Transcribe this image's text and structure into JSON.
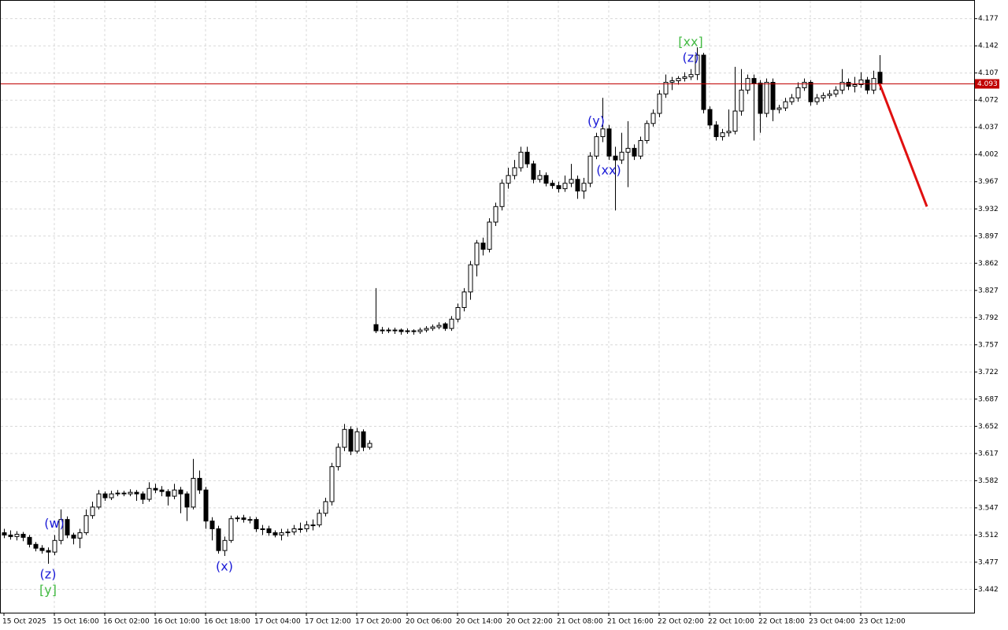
{
  "chart_data": {
    "type": "candlestick",
    "up_color": "#ffffff",
    "down_color": "#000000",
    "wick_color": "#000000",
    "grid": true,
    "ylim": [
      3.412,
      4.2
    ],
    "yticks": [
      4.177,
      4.142,
      4.107,
      4.072,
      4.037,
      4.002,
      3.967,
      3.932,
      3.897,
      3.862,
      3.827,
      3.792,
      3.757,
      3.722,
      3.687,
      3.652,
      3.617,
      3.582,
      3.547,
      3.512,
      3.477,
      3.442
    ],
    "categories": [
      "15 Oct 2025",
      null,
      null,
      null,
      null,
      null,
      null,
      null,
      "15 Oct 16:00",
      null,
      null,
      null,
      null,
      null,
      null,
      null,
      "16 Oct 02:00",
      null,
      null,
      null,
      null,
      null,
      null,
      null,
      "16 Oct 10:00",
      null,
      null,
      null,
      null,
      null,
      null,
      null,
      "16 Oct 18:00",
      null,
      null,
      null,
      null,
      null,
      null,
      null,
      "17 Oct 04:00",
      null,
      null,
      null,
      null,
      null,
      null,
      null,
      "17 Oct 12:00",
      null,
      null,
      null,
      null,
      null,
      null,
      null,
      "17 Oct 20:00",
      null,
      null,
      null,
      null,
      null,
      null,
      null,
      "20 Oct 06:00",
      null,
      null,
      null,
      null,
      null,
      null,
      null,
      "20 Oct 14:00",
      null,
      null,
      null,
      null,
      null,
      null,
      null,
      "20 Oct 22:00",
      null,
      null,
      null,
      null,
      null,
      null,
      null,
      "21 Oct 08:00",
      null,
      null,
      null,
      null,
      null,
      null,
      null,
      "21 Oct 16:00",
      null,
      null,
      null,
      null,
      null,
      null,
      null,
      "22 Oct 02:00",
      null,
      null,
      null,
      null,
      null,
      null,
      null,
      "22 Oct 10:00",
      null,
      null,
      null,
      null,
      null,
      null,
      null,
      "22 Oct 18:00",
      null,
      null,
      null,
      null,
      null,
      null,
      null,
      "23 Oct 04:00",
      null,
      null,
      null,
      null,
      null,
      null,
      null,
      "23 Oct 12:00",
      null,
      null
    ],
    "ohlc": [
      [
        3.515,
        3.52,
        3.508,
        3.512
      ],
      [
        3.512,
        3.518,
        3.506,
        3.51
      ],
      [
        3.51,
        3.517,
        3.505,
        3.513
      ],
      [
        3.513,
        3.516,
        3.504,
        3.509
      ],
      [
        3.509,
        3.512,
        3.496,
        3.5
      ],
      [
        3.5,
        3.503,
        3.491,
        3.495
      ],
      [
        3.495,
        3.499,
        3.488,
        3.492
      ],
      [
        3.492,
        3.496,
        3.475,
        3.49
      ],
      [
        3.49,
        3.512,
        3.486,
        3.505
      ],
      [
        3.505,
        3.545,
        3.5,
        3.532
      ],
      [
        3.532,
        3.536,
        3.508,
        3.512
      ],
      [
        3.512,
        3.515,
        3.5,
        3.508
      ],
      [
        3.508,
        3.52,
        3.495,
        3.515
      ],
      [
        3.515,
        3.545,
        3.512,
        3.537
      ],
      [
        3.537,
        3.555,
        3.533,
        3.548
      ],
      [
        3.548,
        3.57,
        3.545,
        3.565
      ],
      [
        3.565,
        3.568,
        3.556,
        3.56
      ],
      [
        3.56,
        3.569,
        3.557,
        3.565
      ],
      [
        3.565,
        3.57,
        3.562,
        3.566
      ],
      [
        3.566,
        3.569,
        3.562,
        3.565
      ],
      [
        3.565,
        3.571,
        3.562,
        3.567
      ],
      [
        3.567,
        3.57,
        3.556,
        3.565
      ],
      [
        3.565,
        3.568,
        3.552,
        3.558
      ],
      [
        3.558,
        3.58,
        3.555,
        3.572
      ],
      [
        3.572,
        3.578,
        3.566,
        3.57
      ],
      [
        3.57,
        3.575,
        3.562,
        3.568
      ],
      [
        3.568,
        3.571,
        3.55,
        3.562
      ],
      [
        3.562,
        3.578,
        3.558,
        3.57
      ],
      [
        3.57,
        3.574,
        3.54,
        3.565
      ],
      [
        3.565,
        3.568,
        3.53,
        3.548
      ],
      [
        3.548,
        3.61,
        3.545,
        3.585
      ],
      [
        3.585,
        3.595,
        3.565,
        3.57
      ],
      [
        3.57,
        3.574,
        3.52,
        3.53
      ],
      [
        3.53,
        3.535,
        3.505,
        3.52
      ],
      [
        3.52,
        3.524,
        3.488,
        3.492
      ],
      [
        3.492,
        3.51,
        3.485,
        3.505
      ],
      [
        3.505,
        3.537,
        3.502,
        3.533
      ],
      [
        3.533,
        3.537,
        3.529,
        3.534
      ],
      [
        3.534,
        3.538,
        3.528,
        3.532
      ],
      [
        3.532,
        3.536,
        3.527,
        3.532
      ],
      [
        3.532,
        3.535,
        3.516,
        3.52
      ],
      [
        3.52,
        3.525,
        3.512,
        3.52
      ],
      [
        3.52,
        3.524,
        3.511,
        3.515
      ],
      [
        3.515,
        3.518,
        3.509,
        3.512
      ],
      [
        3.512,
        3.52,
        3.505,
        3.515
      ],
      [
        3.515,
        3.52,
        3.51,
        3.516
      ],
      [
        3.516,
        3.525,
        3.512,
        3.52
      ],
      [
        3.52,
        3.528,
        3.515,
        3.52
      ],
      [
        3.52,
        3.53,
        3.516,
        3.525
      ],
      [
        3.525,
        3.532,
        3.518,
        3.525
      ],
      [
        3.525,
        3.545,
        3.522,
        3.54
      ],
      [
        3.54,
        3.56,
        3.536,
        3.555
      ],
      [
        3.555,
        3.605,
        3.55,
        3.6
      ],
      [
        3.6,
        3.63,
        3.595,
        3.625
      ],
      [
        3.625,
        3.655,
        3.62,
        3.648
      ],
      [
        3.648,
        3.652,
        3.615,
        3.62
      ],
      [
        3.62,
        3.65,
        3.617,
        3.645
      ],
      [
        3.645,
        3.648,
        3.62,
        3.625
      ],
      [
        3.625,
        3.634,
        3.622,
        3.63
      ],
      [
        3.783,
        3.83,
        3.772,
        3.775
      ],
      [
        3.775,
        3.78,
        3.771,
        3.776
      ],
      [
        3.776,
        3.779,
        3.772,
        3.775
      ],
      [
        3.775,
        3.779,
        3.771,
        3.776
      ],
      [
        3.776,
        3.778,
        3.77,
        3.774
      ],
      [
        3.774,
        3.778,
        3.771,
        3.775
      ],
      [
        3.775,
        3.777,
        3.77,
        3.774
      ],
      [
        3.774,
        3.779,
        3.771,
        3.776
      ],
      [
        3.776,
        3.781,
        3.773,
        3.778
      ],
      [
        3.778,
        3.783,
        3.775,
        3.78
      ],
      [
        3.78,
        3.786,
        3.777,
        3.782
      ],
      [
        3.784,
        3.786,
        3.775,
        3.778
      ],
      [
        3.778,
        3.794,
        3.775,
        3.79
      ],
      [
        3.79,
        3.81,
        3.786,
        3.805
      ],
      [
        3.805,
        3.83,
        3.8,
        3.825
      ],
      [
        3.825,
        3.865,
        3.815,
        3.86
      ],
      [
        3.86,
        3.892,
        3.845,
        3.888
      ],
      [
        3.888,
        3.895,
        3.872,
        3.88
      ],
      [
        3.88,
        3.92,
        3.876,
        3.915
      ],
      [
        3.915,
        3.94,
        3.91,
        3.935
      ],
      [
        3.935,
        3.97,
        3.93,
        3.965
      ],
      [
        3.965,
        3.985,
        3.958,
        3.975
      ],
      [
        3.975,
        3.995,
        3.97,
        3.985
      ],
      [
        3.985,
        4.012,
        3.98,
        4.005
      ],
      [
        4.005,
        4.012,
        3.985,
        3.99
      ],
      [
        3.99,
        3.994,
        3.965,
        3.97
      ],
      [
        3.97,
        3.982,
        3.966,
        3.975
      ],
      [
        3.975,
        3.979,
        3.961,
        3.965
      ],
      [
        3.965,
        3.969,
        3.958,
        3.962
      ],
      [
        3.962,
        3.967,
        3.953,
        3.958
      ],
      [
        3.958,
        3.975,
        3.954,
        3.965
      ],
      [
        3.965,
        3.99,
        3.96,
        3.97
      ],
      [
        3.97,
        3.975,
        3.945,
        3.955
      ],
      [
        3.955,
        3.972,
        3.945,
        3.965
      ],
      [
        3.965,
        4.005,
        3.96,
        4.0
      ],
      [
        4.0,
        4.03,
        3.996,
        4.025
      ],
      [
        4.025,
        4.075,
        4.018,
        4.035
      ],
      [
        4.035,
        4.04,
        3.995,
        4.0
      ],
      [
        4.0,
        4.012,
        3.93,
        3.995
      ],
      [
        3.995,
        4.03,
        3.99,
        4.005
      ],
      [
        4.005,
        4.045,
        3.96,
        4.01
      ],
      [
        4.01,
        4.015,
        3.995,
        4.0
      ],
      [
        4.0,
        4.025,
        3.996,
        4.02
      ],
      [
        4.02,
        4.046,
        4.016,
        4.042
      ],
      [
        4.042,
        4.06,
        4.038,
        4.055
      ],
      [
        4.055,
        4.085,
        4.05,
        4.08
      ],
      [
        4.08,
        4.105,
        4.075,
        4.095
      ],
      [
        4.095,
        4.102,
        4.085,
        4.097
      ],
      [
        4.097,
        4.103,
        4.092,
        4.1
      ],
      [
        4.1,
        4.108,
        4.096,
        4.102
      ],
      [
        4.102,
        4.112,
        4.098,
        4.105
      ],
      [
        4.105,
        4.14,
        4.098,
        4.13
      ],
      [
        4.13,
        4.133,
        4.055,
        4.06
      ],
      [
        4.06,
        4.064,
        4.035,
        4.04
      ],
      [
        4.04,
        4.045,
        4.02,
        4.025
      ],
      [
        4.025,
        4.035,
        4.02,
        4.03
      ],
      [
        4.03,
        4.06,
        4.025,
        4.032
      ],
      [
        4.032,
        4.115,
        4.028,
        4.058
      ],
      [
        4.058,
        4.112,
        4.052,
        4.085
      ],
      [
        4.085,
        4.105,
        4.08,
        4.1
      ],
      [
        4.1,
        4.105,
        4.02,
        4.094
      ],
      [
        4.094,
        4.098,
        4.03,
        4.055
      ],
      [
        4.055,
        4.1,
        4.05,
        4.095
      ],
      [
        4.095,
        4.1,
        4.045,
        4.06
      ],
      [
        4.06,
        4.066,
        4.055,
        4.062
      ],
      [
        4.062,
        4.075,
        4.058,
        4.07
      ],
      [
        4.07,
        4.08,
        4.066,
        4.075
      ],
      [
        4.075,
        4.095,
        4.07,
        4.088
      ],
      [
        4.088,
        4.1,
        4.084,
        4.095
      ],
      [
        4.095,
        4.098,
        4.065,
        4.07
      ],
      [
        4.07,
        4.08,
        4.066,
        4.075
      ],
      [
        4.075,
        4.082,
        4.07,
        4.078
      ],
      [
        4.078,
        4.085,
        4.074,
        4.08
      ],
      [
        4.08,
        4.09,
        4.076,
        4.085
      ],
      [
        4.085,
        4.112,
        4.08,
        4.095
      ],
      [
        4.095,
        4.1,
        4.085,
        4.09
      ],
      [
        4.09,
        4.102,
        4.082,
        4.092
      ],
      [
        4.092,
        4.108,
        4.088,
        4.098
      ],
      [
        4.098,
        4.102,
        4.08,
        4.085
      ],
      [
        4.085,
        4.11,
        4.08,
        4.1
      ],
      [
        4.108,
        4.13,
        4.085,
        4.093
      ]
    ],
    "current_price": {
      "value": 4.093,
      "color": "#c00000"
    },
    "forecast": {
      "from": 4.093,
      "to": 3.935,
      "color": "#e01010"
    },
    "annotations": [
      {
        "candle": 8,
        "side": "above",
        "labels": [
          {
            "text": "(w)",
            "color": "#1a1ad6"
          }
        ]
      },
      {
        "candle": 7,
        "side": "below",
        "labels": [
          {
            "text": "(z)",
            "color": "#1a1ad6"
          },
          {
            "text": "[y]",
            "color": "#44bb44"
          }
        ]
      },
      {
        "candle": 35,
        "side": "below",
        "labels": [
          {
            "text": "(x)",
            "color": "#1a1ad6"
          }
        ]
      },
      {
        "candle": 94,
        "side": "above",
        "labels": [
          {
            "text": "(y)",
            "color": "#1a1ad6"
          }
        ]
      },
      {
        "candle": 96,
        "side": "below",
        "labels": [
          {
            "text": "(xx)",
            "color": "#1a1ad6"
          }
        ]
      },
      {
        "candle": 109,
        "side": "above",
        "labels": [
          {
            "text": "(z)",
            "color": "#1a1ad6"
          },
          {
            "text": "[xx]",
            "color": "#44bb44"
          }
        ]
      }
    ]
  }
}
